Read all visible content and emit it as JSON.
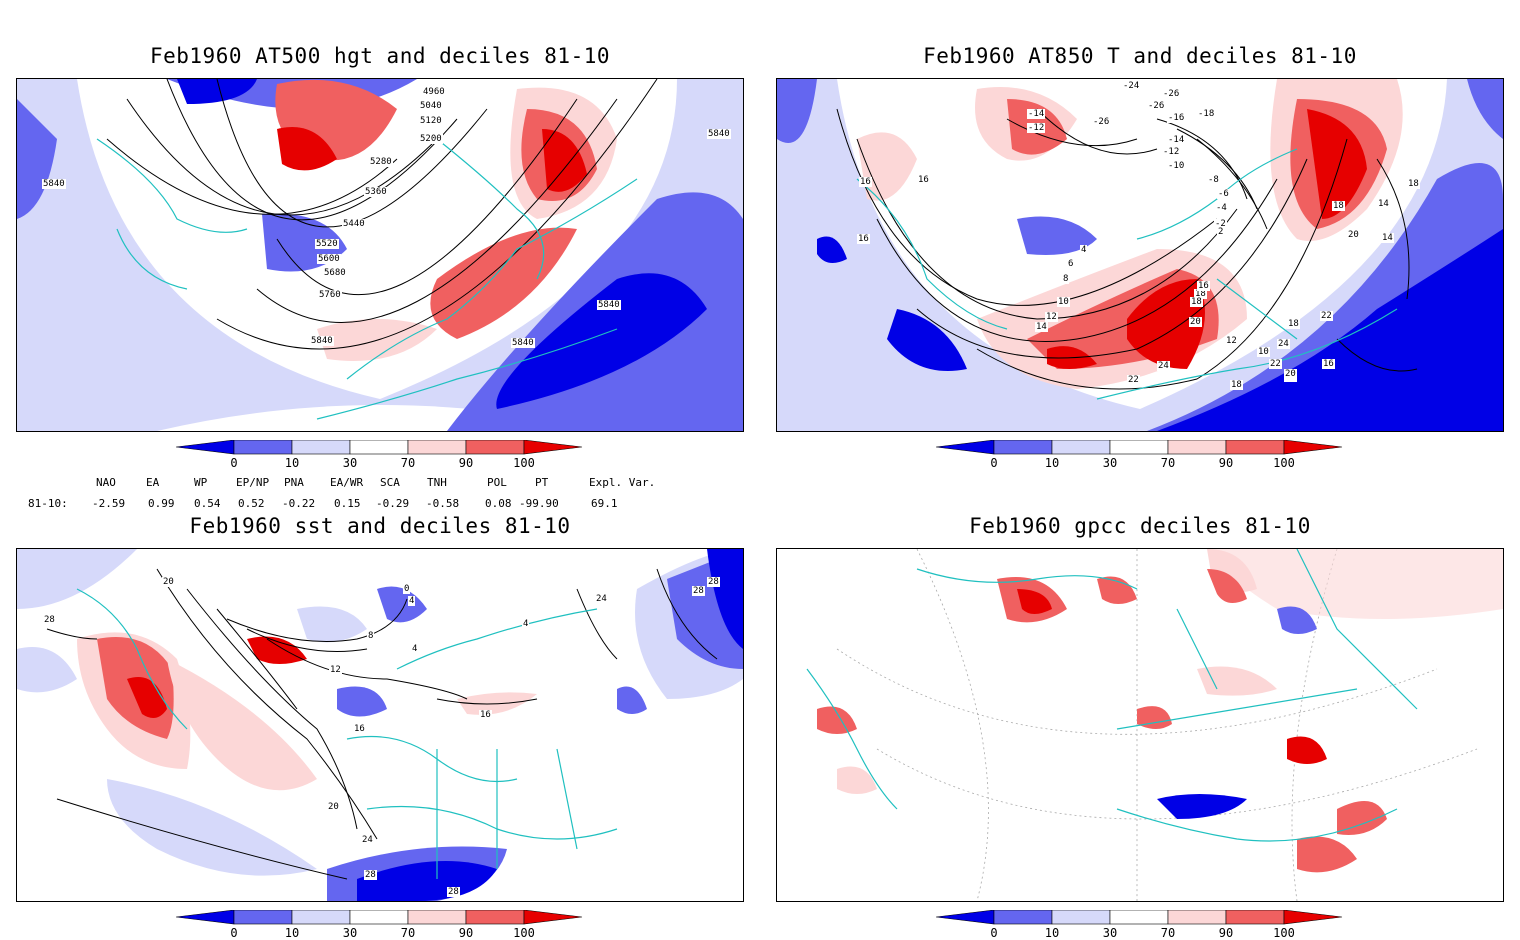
{
  "panels": [
    {
      "id": "p1",
      "title": "Feb1960 AT500 hgt and deciles 81-10",
      "contour_labels": [
        "4960",
        "5040",
        "5120",
        "5200",
        "5280",
        "5360",
        "5440",
        "5520",
        "5600",
        "5680",
        "5760",
        "5840",
        "5840",
        "5840",
        "5840",
        "5840"
      ]
    },
    {
      "id": "p2",
      "title": "Feb1960 AT850 T and deciles 81-10",
      "contour_labels": [
        "-24",
        "-26",
        "-26",
        "-14",
        "-12",
        "-26",
        "-18",
        "-16",
        "-14",
        "-12",
        "-10",
        "-8",
        "-6",
        "-4",
        "-2",
        "2",
        "4",
        "6",
        "8",
        "10",
        "12",
        "14",
        "16",
        "16",
        "16",
        "18",
        "18",
        "18",
        "20",
        "20",
        "22",
        "24",
        "24",
        "22",
        "16",
        "14",
        "14",
        "12",
        "10",
        "18",
        "16",
        "22",
        "20",
        "18",
        "20",
        "18"
      ]
    },
    {
      "id": "p3",
      "title": "Feb1960 sst and deciles 81-10",
      "contour_labels": [
        "28",
        "20",
        "0",
        "4",
        "8",
        "12",
        "16",
        "16",
        "20",
        "24",
        "24",
        "28",
        "28",
        "28",
        "28",
        "4",
        "4"
      ]
    },
    {
      "id": "p4",
      "title": "Feb1960 gpcc deciles 81-10",
      "contour_labels": []
    }
  ],
  "colorbar": {
    "ticks": [
      "0",
      "10",
      "30",
      "70",
      "90",
      "100"
    ],
    "colors": {
      "deep_blue": "#0000e6",
      "mid_blue": "#6466f0",
      "light_blue": "#d6d9fa",
      "white": "#ffffff",
      "light_red": "#fcd7d7",
      "mid_red": "#f06060",
      "deep_red": "#e60000"
    }
  },
  "indices": {
    "headers": [
      "NAO",
      "EA",
      "WP",
      "EP/NP",
      "PNA",
      "EA/WR",
      "SCA",
      "TNH",
      "POL",
      "PT",
      "Expl. Var."
    ],
    "row_label": "81-10:",
    "values": [
      "-2.59",
      "0.99",
      "0.54",
      "0.52",
      "-0.22",
      "0.15",
      "-0.29",
      "-0.58",
      "0.08",
      "-99.90",
      "69.1"
    ]
  }
}
